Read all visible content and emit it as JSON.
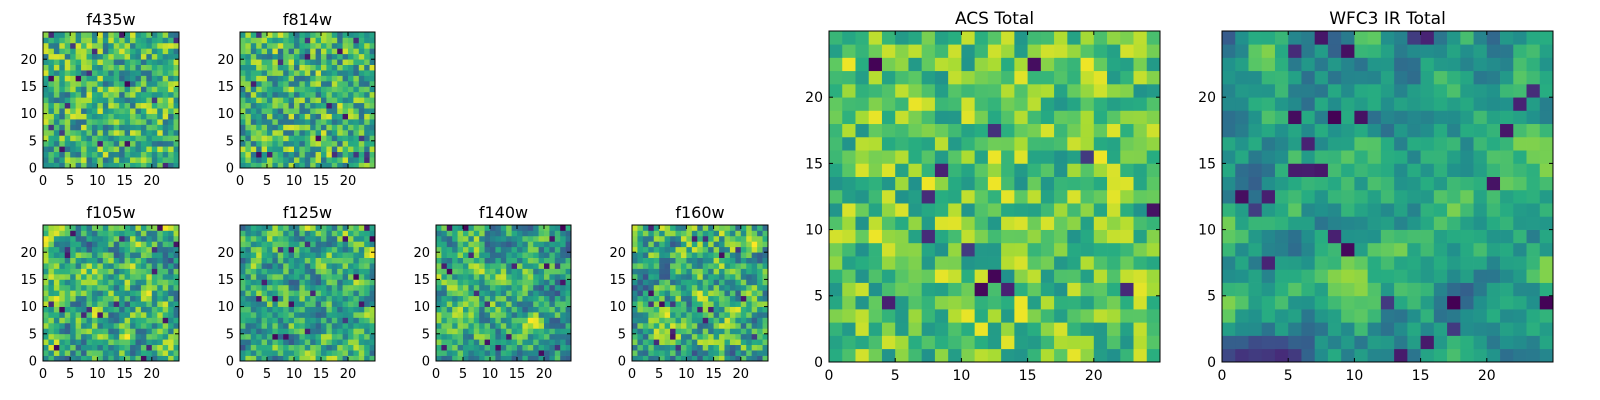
{
  "chart_data": [
    {
      "type": "heatmap",
      "title": "f435w",
      "colormap": "viridis",
      "grid_size": 25,
      "xlim": [
        0,
        25
      ],
      "ylim": [
        0,
        25
      ],
      "xticks": [
        0,
        5,
        10,
        15,
        20
      ],
      "yticks": [
        0,
        5,
        10,
        15,
        20
      ],
      "seed": 11,
      "style": "noise"
    },
    {
      "type": "heatmap",
      "title": "f814w",
      "colormap": "viridis",
      "grid_size": 25,
      "xlim": [
        0,
        25
      ],
      "ylim": [
        0,
        25
      ],
      "xticks": [
        0,
        5,
        10,
        15,
        20
      ],
      "yticks": [
        0,
        5,
        10,
        15,
        20
      ],
      "seed": 23,
      "style": "noise"
    },
    {
      "type": "heatmap",
      "title": "f105w",
      "colormap": "viridis",
      "grid_size": 25,
      "xlim": [
        0,
        25
      ],
      "ylim": [
        0,
        25
      ],
      "xticks": [
        0,
        5,
        10,
        15,
        20
      ],
      "yticks": [
        0,
        5,
        10,
        15,
        20
      ],
      "seed": 37,
      "style": "blob"
    },
    {
      "type": "heatmap",
      "title": "f125w",
      "colormap": "viridis",
      "grid_size": 25,
      "xlim": [
        0,
        25
      ],
      "ylim": [
        0,
        25
      ],
      "xticks": [
        0,
        5,
        10,
        15,
        20
      ],
      "yticks": [
        0,
        5,
        10,
        15,
        20
      ],
      "seed": 41,
      "style": "blob"
    },
    {
      "type": "heatmap",
      "title": "f140w",
      "colormap": "viridis",
      "grid_size": 25,
      "xlim": [
        0,
        25
      ],
      "ylim": [
        0,
        25
      ],
      "xticks": [
        0,
        5,
        10,
        15,
        20
      ],
      "yticks": [
        0,
        5,
        10,
        15,
        20
      ],
      "seed": 53,
      "style": "blob"
    },
    {
      "type": "heatmap",
      "title": "f160w",
      "colormap": "viridis",
      "grid_size": 25,
      "xlim": [
        0,
        25
      ],
      "ylim": [
        0,
        25
      ],
      "xticks": [
        0,
        5,
        10,
        15,
        20
      ],
      "yticks": [
        0,
        5,
        10,
        15,
        20
      ],
      "seed": 67,
      "style": "blob"
    },
    {
      "type": "heatmap",
      "title": "ACS Total",
      "colormap": "viridis",
      "grid_size": 25,
      "xlim": [
        0,
        25
      ],
      "ylim": [
        0,
        25
      ],
      "xticks": [
        0,
        5,
        10,
        15,
        20
      ],
      "yticks": [
        0,
        5,
        10,
        15,
        20
      ],
      "seed": 79,
      "style": "acs"
    },
    {
      "type": "heatmap",
      "title": "WFC3 IR Total",
      "colormap": "viridis",
      "grid_size": 25,
      "xlim": [
        0,
        25
      ],
      "ylim": [
        0,
        25
      ],
      "xticks": [
        0,
        5,
        10,
        15,
        20
      ],
      "yticks": [
        0,
        5,
        10,
        15,
        20
      ],
      "seed": 97,
      "style": "ir"
    }
  ]
}
